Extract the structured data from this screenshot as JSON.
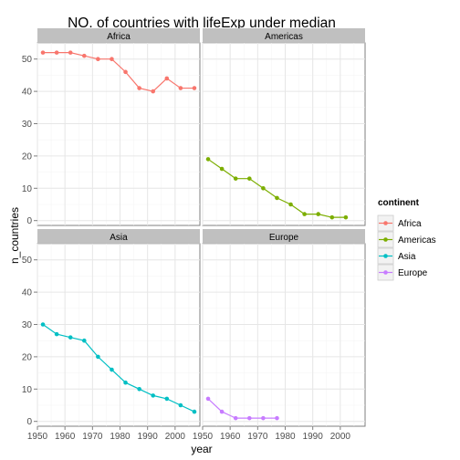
{
  "chart_data": {
    "type": "line",
    "title": "NO. of countries with lifeExp under median",
    "xlabel": "year",
    "ylabel": "n_countries",
    "xlim": [
      1950,
      2009
    ],
    "ylim": [
      -1.5,
      55
    ],
    "x_ticks": [
      1950,
      1960,
      1970,
      1980,
      1990,
      2000
    ],
    "y_ticks": [
      0,
      10,
      20,
      30,
      40,
      50
    ],
    "grid": true,
    "layout": "facet_wrap 2x2",
    "legend": {
      "title": "continent",
      "position": "right",
      "entries": [
        "Africa",
        "Americas",
        "Asia",
        "Europe"
      ]
    },
    "colors": {
      "Africa": "#f8766d",
      "Americas": "#7cae00",
      "Asia": "#00bfc4",
      "Europe": "#c77cff",
      "strip_bg": "#c0c0c0",
      "grid_major": "#e6e6e6",
      "grid_minor": "#f3f3f3"
    },
    "series": [
      {
        "name": "Africa",
        "x": [
          1952,
          1957,
          1962,
          1967,
          1972,
          1977,
          1982,
          1987,
          1992,
          1997,
          2002,
          2007
        ],
        "values": [
          52,
          52,
          52,
          51,
          50,
          50,
          46,
          41,
          40,
          44,
          41,
          41
        ]
      },
      {
        "name": "Americas",
        "x": [
          1952,
          1957,
          1962,
          1967,
          1972,
          1977,
          1982,
          1987,
          1992,
          1997,
          2002
        ],
        "values": [
          19,
          16,
          13,
          13,
          10,
          7,
          5,
          2,
          2,
          1,
          1
        ]
      },
      {
        "name": "Asia",
        "x": [
          1952,
          1957,
          1962,
          1967,
          1972,
          1977,
          1982,
          1987,
          1992,
          1997,
          2002,
          2007
        ],
        "values": [
          30,
          27,
          26,
          25,
          20,
          16,
          12,
          10,
          8,
          7,
          5,
          3
        ]
      },
      {
        "name": "Europe",
        "x": [
          1952,
          1957,
          1962,
          1967,
          1972,
          1977
        ],
        "values": [
          7,
          3,
          1,
          1,
          1,
          1
        ]
      }
    ]
  }
}
